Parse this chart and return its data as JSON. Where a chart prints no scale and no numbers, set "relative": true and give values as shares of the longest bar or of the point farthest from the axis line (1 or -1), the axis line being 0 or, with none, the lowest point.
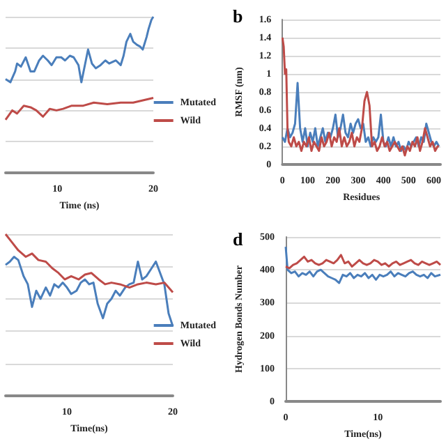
{
  "chart_data": [
    {
      "type": "line",
      "relative": true,
      "tick_labels": "x",
      "xlabel": "Time (ns)",
      "xlim": [
        4.6,
        20
      ],
      "xticks": [
        10,
        20
      ],
      "grid": "y",
      "legend": "right",
      "series": [
        {
          "name": "Mutated",
          "color": "#4a7ebb",
          "x": [
            4.6,
            5.1,
            5.6,
            5.8,
            6.2,
            6.7,
            7.2,
            7.6,
            8.1,
            8.5,
            9.0,
            9.4,
            9.9,
            10.4,
            10.8,
            11.3,
            11.7,
            12.2,
            12.5,
            12.9,
            13.2,
            13.6,
            14.0,
            14.5,
            15.0,
            15.4,
            16.1,
            16.6,
            16.9,
            17.2,
            17.6,
            17.9,
            18.3,
            18.6,
            18.9,
            19.3,
            19.5,
            19.8,
            20.0
          ],
          "values": [
            0.6,
            0.58,
            0.65,
            0.7,
            0.68,
            0.74,
            0.65,
            0.65,
            0.72,
            0.75,
            0.72,
            0.69,
            0.74,
            0.74,
            0.72,
            0.75,
            0.74,
            0.69,
            0.58,
            0.7,
            0.79,
            0.7,
            0.67,
            0.69,
            0.72,
            0.7,
            0.72,
            0.69,
            0.75,
            0.84,
            0.89,
            0.84,
            0.82,
            0.81,
            0.79,
            0.87,
            0.92,
            0.98,
            1.0
          ]
        },
        {
          "name": "Wild",
          "color": "#be4b48",
          "x": [
            4.6,
            5.3,
            5.8,
            6.5,
            7.2,
            7.8,
            8.5,
            9.2,
            9.9,
            10.6,
            11.5,
            12.7,
            13.8,
            15.2,
            16.6,
            17.9,
            19.3,
            20.0
          ],
          "values": [
            0.34,
            0.4,
            0.38,
            0.43,
            0.42,
            0.4,
            0.36,
            0.41,
            0.4,
            0.41,
            0.43,
            0.43,
            0.45,
            0.44,
            0.45,
            0.45,
            0.47,
            0.48
          ]
        }
      ]
    },
    {
      "type": "line",
      "title": "b",
      "xlabel": "Residues",
      "ylabel": "RMSF (nm)",
      "xlim": [
        0,
        626
      ],
      "xticks": [
        0,
        100,
        200,
        300,
        400,
        500,
        600
      ],
      "ylim": [
        0,
        1.6
      ],
      "yticks": [
        0,
        0.2,
        0.4,
        0.6,
        0.8,
        1,
        1.2,
        1.4,
        1.6
      ],
      "grid": "y",
      "series": [
        {
          "color": "#4a7ebb",
          "x": [
            0,
            10,
            20,
            30,
            40,
            50,
            60,
            70,
            80,
            90,
            100,
            110,
            120,
            130,
            140,
            150,
            160,
            170,
            180,
            190,
            200,
            210,
            220,
            230,
            240,
            250,
            260,
            270,
            280,
            290,
            300,
            310,
            320,
            330,
            340,
            350,
            360,
            370,
            380,
            390,
            400,
            410,
            420,
            430,
            440,
            450,
            460,
            470,
            480,
            490,
            500,
            510,
            520,
            530,
            540,
            550,
            560,
            570,
            580,
            590,
            600,
            610,
            620
          ],
          "values": [
            0.3,
            0.25,
            0.4,
            0.3,
            0.35,
            0.45,
            0.9,
            0.4,
            0.25,
            0.4,
            0.2,
            0.35,
            0.25,
            0.4,
            0.2,
            0.3,
            0.4,
            0.25,
            0.35,
            0.3,
            0.4,
            0.55,
            0.3,
            0.4,
            0.55,
            0.35,
            0.3,
            0.45,
            0.35,
            0.45,
            0.5,
            0.4,
            0.45,
            0.25,
            0.3,
            0.2,
            0.3,
            0.25,
            0.3,
            0.55,
            0.25,
            0.2,
            0.3,
            0.2,
            0.3,
            0.2,
            0.25,
            0.15,
            0.2,
            0.15,
            0.25,
            0.2,
            0.25,
            0.3,
            0.2,
            0.3,
            0.25,
            0.45,
            0.35,
            0.25,
            0.2,
            0.25,
            0.2
          ]
        },
        {
          "color": "#be4b48",
          "x": [
            0,
            5,
            10,
            15,
            20,
            25,
            35,
            45,
            55,
            65,
            75,
            85,
            95,
            105,
            115,
            125,
            135,
            145,
            155,
            165,
            175,
            185,
            195,
            205,
            215,
            225,
            235,
            245,
            255,
            265,
            275,
            285,
            295,
            305,
            315,
            325,
            335,
            345,
            355,
            365,
            375,
            385,
            395,
            405,
            415,
            425,
            435,
            445,
            455,
            465,
            475,
            485,
            495,
            505,
            515,
            525,
            535,
            545,
            555,
            565,
            575,
            585,
            595,
            605,
            615,
            620
          ],
          "values": [
            1.4,
            1.3,
            1.0,
            1.05,
            0.4,
            0.25,
            0.2,
            0.3,
            0.2,
            0.25,
            0.15,
            0.25,
            0.2,
            0.3,
            0.15,
            0.25,
            0.2,
            0.15,
            0.3,
            0.2,
            0.25,
            0.35,
            0.2,
            0.3,
            0.25,
            0.4,
            0.2,
            0.3,
            0.2,
            0.25,
            0.35,
            0.2,
            0.3,
            0.25,
            0.4,
            0.7,
            0.8,
            0.65,
            0.2,
            0.25,
            0.15,
            0.2,
            0.3,
            0.2,
            0.25,
            0.15,
            0.2,
            0.25,
            0.2,
            0.15,
            0.2,
            0.1,
            0.2,
            0.15,
            0.25,
            0.2,
            0.3,
            0.15,
            0.25,
            0.4,
            0.3,
            0.2,
            0.25,
            0.15,
            0.2,
            0.2
          ]
        }
      ]
    },
    {
      "type": "line",
      "relative": true,
      "tick_labels": "x",
      "xlabel": "Time(ns)",
      "xlim": [
        4.2,
        20
      ],
      "xticks": [
        10,
        20
      ],
      "grid": "y",
      "legend": "right",
      "series": [
        {
          "name": "Mutated",
          "color": "#4a7ebb",
          "x": [
            4.2,
            4.6,
            5.0,
            5.4,
            5.9,
            6.3,
            6.7,
            7.1,
            7.5,
            8.0,
            8.4,
            8.8,
            9.2,
            9.6,
            10.0,
            10.4,
            10.9,
            11.3,
            11.7,
            12.1,
            12.5,
            12.9,
            13.4,
            13.8,
            14.2,
            14.6,
            15.0,
            15.5,
            15.9,
            16.3,
            16.7,
            17.1,
            17.5,
            18.0,
            18.4,
            18.8,
            19.2,
            19.6,
            20.0
          ],
          "values": [
            0.81,
            0.83,
            0.86,
            0.84,
            0.74,
            0.69,
            0.55,
            0.65,
            0.6,
            0.67,
            0.62,
            0.69,
            0.67,
            0.7,
            0.67,
            0.63,
            0.65,
            0.7,
            0.72,
            0.69,
            0.7,
            0.57,
            0.48,
            0.57,
            0.6,
            0.65,
            0.62,
            0.67,
            0.69,
            0.7,
            0.83,
            0.72,
            0.74,
            0.79,
            0.83,
            0.76,
            0.69,
            0.51,
            0.43
          ]
        },
        {
          "name": "Wild",
          "color": "#be4b48",
          "x": [
            4.2,
            4.8,
            5.4,
            6.1,
            6.7,
            7.3,
            8.0,
            8.6,
            9.2,
            9.8,
            10.4,
            11.1,
            11.7,
            12.3,
            13.0,
            13.6,
            14.2,
            15.0,
            15.9,
            16.7,
            17.5,
            18.4,
            19.2,
            19.6,
            20.0
          ],
          "values": [
            1.0,
            0.95,
            0.9,
            0.86,
            0.88,
            0.84,
            0.83,
            0.79,
            0.76,
            0.72,
            0.74,
            0.72,
            0.75,
            0.76,
            0.72,
            0.69,
            0.7,
            0.69,
            0.67,
            0.69,
            0.7,
            0.69,
            0.7,
            0.67,
            0.64
          ]
        }
      ]
    },
    {
      "type": "line",
      "title": "d",
      "xlabel": "Time(ns)",
      "ylabel": "Hydrogen Bonds Number",
      "xlim": [
        0,
        16.8
      ],
      "xticks": [
        0,
        10
      ],
      "ylim": [
        0,
        500
      ],
      "yticks": [
        0,
        100,
        200,
        300,
        400,
        500
      ],
      "grid": "y",
      "series": [
        {
          "color": "#4a7ebb",
          "x": [
            0,
            0.2,
            0.6,
            1,
            1.4,
            1.8,
            2.2,
            2.6,
            3,
            3.4,
            3.8,
            4.2,
            4.6,
            5,
            5.4,
            5.8,
            6.2,
            6.6,
            7,
            7.4,
            7.8,
            8.2,
            8.6,
            9,
            9.4,
            9.8,
            10.2,
            10.6,
            11,
            11.4,
            11.8,
            12.2,
            12.6,
            13,
            13.4,
            13.8,
            14.2,
            14.6,
            15,
            15.4,
            15.8,
            16.2,
            16.8
          ],
          "values": [
            470,
            400,
            390,
            395,
            380,
            390,
            385,
            395,
            380,
            395,
            400,
            390,
            380,
            375,
            370,
            360,
            385,
            380,
            390,
            375,
            385,
            380,
            390,
            375,
            385,
            370,
            385,
            380,
            385,
            395,
            380,
            390,
            385,
            380,
            390,
            395,
            385,
            380,
            385,
            375,
            390,
            380,
            385
          ]
        },
        {
          "color": "#be4b48",
          "x": [
            0,
            0.4,
            0.8,
            1.2,
            1.6,
            2,
            2.4,
            2.8,
            3.2,
            3.6,
            4,
            4.4,
            4.8,
            5.2,
            5.6,
            6,
            6.4,
            6.8,
            7.2,
            7.6,
            8,
            8.4,
            8.8,
            9.2,
            9.6,
            10,
            10.4,
            10.8,
            11.2,
            11.6,
            12,
            12.4,
            12.8,
            13.2,
            13.6,
            14,
            14.4,
            14.8,
            15.2,
            15.6,
            16,
            16.4,
            16.8
          ],
          "values": [
            410,
            405,
            415,
            420,
            430,
            440,
            425,
            430,
            420,
            415,
            420,
            430,
            425,
            420,
            430,
            445,
            420,
            425,
            410,
            420,
            430,
            420,
            415,
            420,
            430,
            425,
            415,
            420,
            410,
            420,
            425,
            415,
            420,
            425,
            430,
            420,
            415,
            425,
            420,
            415,
            420,
            425,
            415
          ]
        }
      ]
    }
  ]
}
